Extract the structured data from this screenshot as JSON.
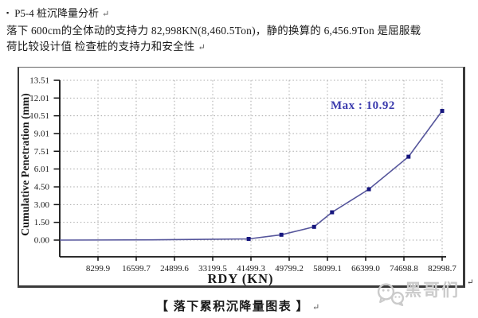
{
  "document": {
    "heading": {
      "bullet": "▪",
      "text": "P5-4 桩沉降量分析",
      "return_mark": "↵"
    },
    "paragraph": {
      "line1": "落下 600cm的全体动的支持力 82,998KN(8,460.5Ton)，静的换算的 6,456.9Ton 是屈服载",
      "line2": "荷比较设计值 检查桩的支持力和安全性",
      "return_mark": "↵"
    },
    "caption": {
      "text": "【 落下累积沉降量图表 】",
      "return_mark": "↵"
    },
    "watermark": {
      "icon": "wechat-chat-bubbles-icon",
      "text": "黑哥们",
      "color": "#cbcbcb"
    },
    "object_anchor_mark": "↵"
  },
  "chart_data": {
    "type": "line",
    "title": "",
    "xlabel": "RDY (KN)",
    "ylabel": "Cumulative Penetration (mm)",
    "x_tick_labels": [
      "8299.9",
      "16599.7",
      "24899.6",
      "33199.5",
      "41499.3",
      "49799.2",
      "58099.1",
      "66399.0",
      "74698.8",
      "82998.7"
    ],
    "y_tick_labels": [
      "0.00",
      "1.50",
      "3.00",
      "4.50",
      "6.01",
      "7.51",
      "9.01",
      "10.51",
      "12.01",
      "13.51"
    ],
    "xlim": [
      0,
      87000
    ],
    "ylim": [
      0,
      13.51
    ],
    "grid": "dotted",
    "legend": "none",
    "annotation": {
      "text": "Max : 10.92",
      "max_value": 10.92,
      "color": "#3a3aad"
    },
    "series": [
      {
        "name": "cumulative-penetration",
        "line_color": "#55559b",
        "marker": "square",
        "marker_color": "#16167e",
        "points": [
          [
            0,
            0
          ],
          [
            20000,
            0.02
          ],
          [
            41000,
            0.1
          ],
          [
            48100,
            0.45
          ],
          [
            55200,
            1.12
          ],
          [
            59100,
            2.35
          ],
          [
            67100,
            4.3
          ],
          [
            75700,
            7.05
          ],
          [
            82998.7,
            10.92
          ]
        ],
        "marker_start_index": 2
      }
    ]
  },
  "colors": {
    "grid": "#a8a8a8",
    "axis": "#111111",
    "frame_border": "#3a3a3a",
    "text": "#1a1a1a"
  }
}
